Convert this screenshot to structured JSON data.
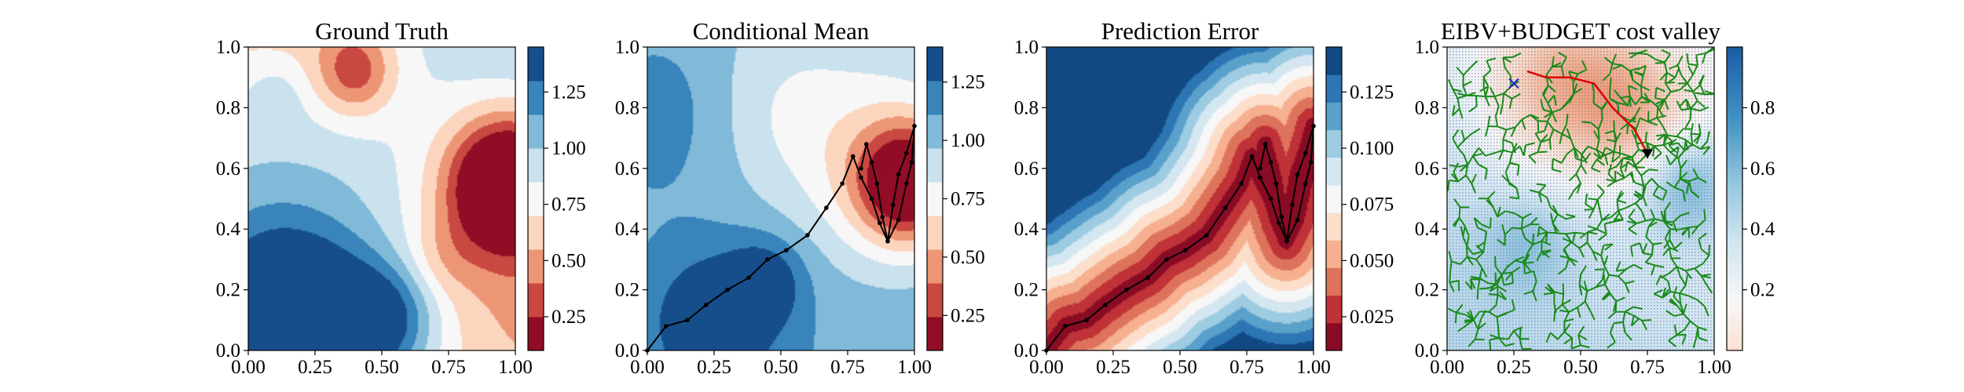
{
  "chart_data": [
    {
      "type": "heatmap",
      "title": "Ground Truth",
      "xlim": [
        0,
        1
      ],
      "ylim": [
        0,
        1
      ],
      "x_ticks": [
        "0.00",
        "0.25",
        "0.50",
        "0.75",
        "1.00"
      ],
      "y_ticks": [
        "0.0",
        "0.2",
        "0.4",
        "0.6",
        "0.8",
        "1.0"
      ],
      "colormap": "RdBu",
      "levels": 9,
      "colorbar": {
        "range": [
          0.1,
          1.45
        ],
        "ticks": [
          "0.25",
          "0.50",
          "0.75",
          "1.00",
          "1.25"
        ],
        "tick_values": [
          0.25,
          0.5,
          0.75,
          1.0,
          1.25
        ]
      },
      "features": [
        {
          "kind": "low",
          "x": 0.95,
          "y": 0.55,
          "value": 0.1,
          "radius": 0.2
        },
        {
          "kind": "high",
          "x": 0.32,
          "y": 0.05,
          "value": 1.45,
          "radius": 0.25
        },
        {
          "kind": "high",
          "x": 0.12,
          "y": 0.12,
          "value": 1.3,
          "radius": 0.22
        },
        {
          "kind": "mid",
          "x": 0.4,
          "y": 0.95,
          "value": 0.65,
          "radius": 0.16
        },
        {
          "kind": "mid",
          "x": 0.2,
          "y": 0.6,
          "value": 0.85,
          "radius": 0.3
        }
      ]
    },
    {
      "type": "heatmap",
      "title": "Conditional Mean",
      "xlim": [
        0,
        1
      ],
      "ylim": [
        0,
        1
      ],
      "x_ticks": [
        "0.00",
        "0.25",
        "0.50",
        "0.75",
        "1.00"
      ],
      "y_ticks": [
        "0.0",
        "0.2",
        "0.4",
        "0.6",
        "0.8",
        "1.0"
      ],
      "colormap": "RdBu",
      "levels": 9,
      "colorbar": {
        "range": [
          0.1,
          1.4
        ],
        "ticks": [
          "0.25",
          "0.50",
          "0.75",
          "1.00",
          "1.25"
        ],
        "tick_values": [
          0.25,
          0.5,
          0.75,
          1.0,
          1.25
        ]
      },
      "path": {
        "x": [
          0.0,
          0.07,
          0.15,
          0.22,
          0.3,
          0.38,
          0.45,
          0.52,
          0.6,
          0.67,
          0.73,
          0.77,
          0.8,
          0.84,
          0.87,
          0.9,
          0.94,
          0.97,
          0.99,
          1.0,
          0.97,
          0.94,
          0.92,
          0.9,
          0.88,
          0.86,
          0.84,
          0.82,
          0.8
        ],
        "y": [
          0.0,
          0.08,
          0.1,
          0.15,
          0.2,
          0.24,
          0.3,
          0.33,
          0.38,
          0.47,
          0.55,
          0.64,
          0.57,
          0.5,
          0.42,
          0.36,
          0.43,
          0.55,
          0.62,
          0.74,
          0.65,
          0.58,
          0.48,
          0.36,
          0.44,
          0.55,
          0.62,
          0.68,
          0.6
        ]
      }
    },
    {
      "type": "heatmap",
      "title": "Prediction Error",
      "xlim": [
        0,
        1
      ],
      "ylim": [
        0,
        1
      ],
      "x_ticks": [
        "0.00",
        "0.25",
        "0.50",
        "0.75",
        "1.00"
      ],
      "y_ticks": [
        "0.0",
        "0.2",
        "0.4",
        "0.6",
        "0.8",
        "1.0"
      ],
      "colormap": "RdBu",
      "levels": 11,
      "colorbar": {
        "range": [
          0.01,
          0.145
        ],
        "ticks": [
          "0.025",
          "0.050",
          "0.075",
          "0.100",
          "0.125"
        ],
        "tick_values": [
          0.025,
          0.05,
          0.075,
          0.1,
          0.125
        ]
      },
      "path": {
        "x": [
          0.0,
          0.07,
          0.15,
          0.22,
          0.3,
          0.38,
          0.45,
          0.52,
          0.6,
          0.67,
          0.73,
          0.77,
          0.8,
          0.84,
          0.87,
          0.9,
          0.94,
          0.97,
          0.99,
          1.0,
          0.97,
          0.94,
          0.92,
          0.9,
          0.88,
          0.86,
          0.84,
          0.82,
          0.8
        ],
        "y": [
          0.0,
          0.08,
          0.1,
          0.15,
          0.2,
          0.24,
          0.3,
          0.33,
          0.38,
          0.47,
          0.55,
          0.64,
          0.57,
          0.5,
          0.42,
          0.36,
          0.43,
          0.55,
          0.62,
          0.74,
          0.65,
          0.58,
          0.48,
          0.36,
          0.44,
          0.55,
          0.62,
          0.68,
          0.6
        ]
      }
    },
    {
      "type": "heatmap",
      "title": "EIBV+BUDGET cost valley",
      "xlim": [
        0,
        1
      ],
      "ylim": [
        0,
        1
      ],
      "x_ticks": [
        "0.00",
        "0.25",
        "0.50",
        "0.75",
        "1.00"
      ],
      "y_ticks": [
        "0.0",
        "0.2",
        "0.4",
        "0.6",
        "0.8",
        "1.0"
      ],
      "colormap": "RdBu",
      "colorbar": {
        "range": [
          0.0,
          1.0
        ],
        "ticks": [
          "0.2",
          "0.4",
          "0.6",
          "0.8"
        ],
        "tick_values": [
          0.2,
          0.4,
          0.6,
          0.8
        ]
      },
      "tree_root": {
        "x": 0.75,
        "y": 0.65
      },
      "selected_path": {
        "x": [
          0.75,
          0.7,
          0.62,
          0.55,
          0.46,
          0.37,
          0.3
        ],
        "y": [
          0.65,
          0.73,
          0.8,
          0.88,
          0.9,
          0.9,
          0.92
        ]
      },
      "target_marker": {
        "x": 0.25,
        "y": 0.88
      },
      "colors": {
        "tree": "#1a8a1a",
        "selected_path": "#dd0000",
        "target": "#2222cc",
        "root": "#000000"
      }
    }
  ]
}
